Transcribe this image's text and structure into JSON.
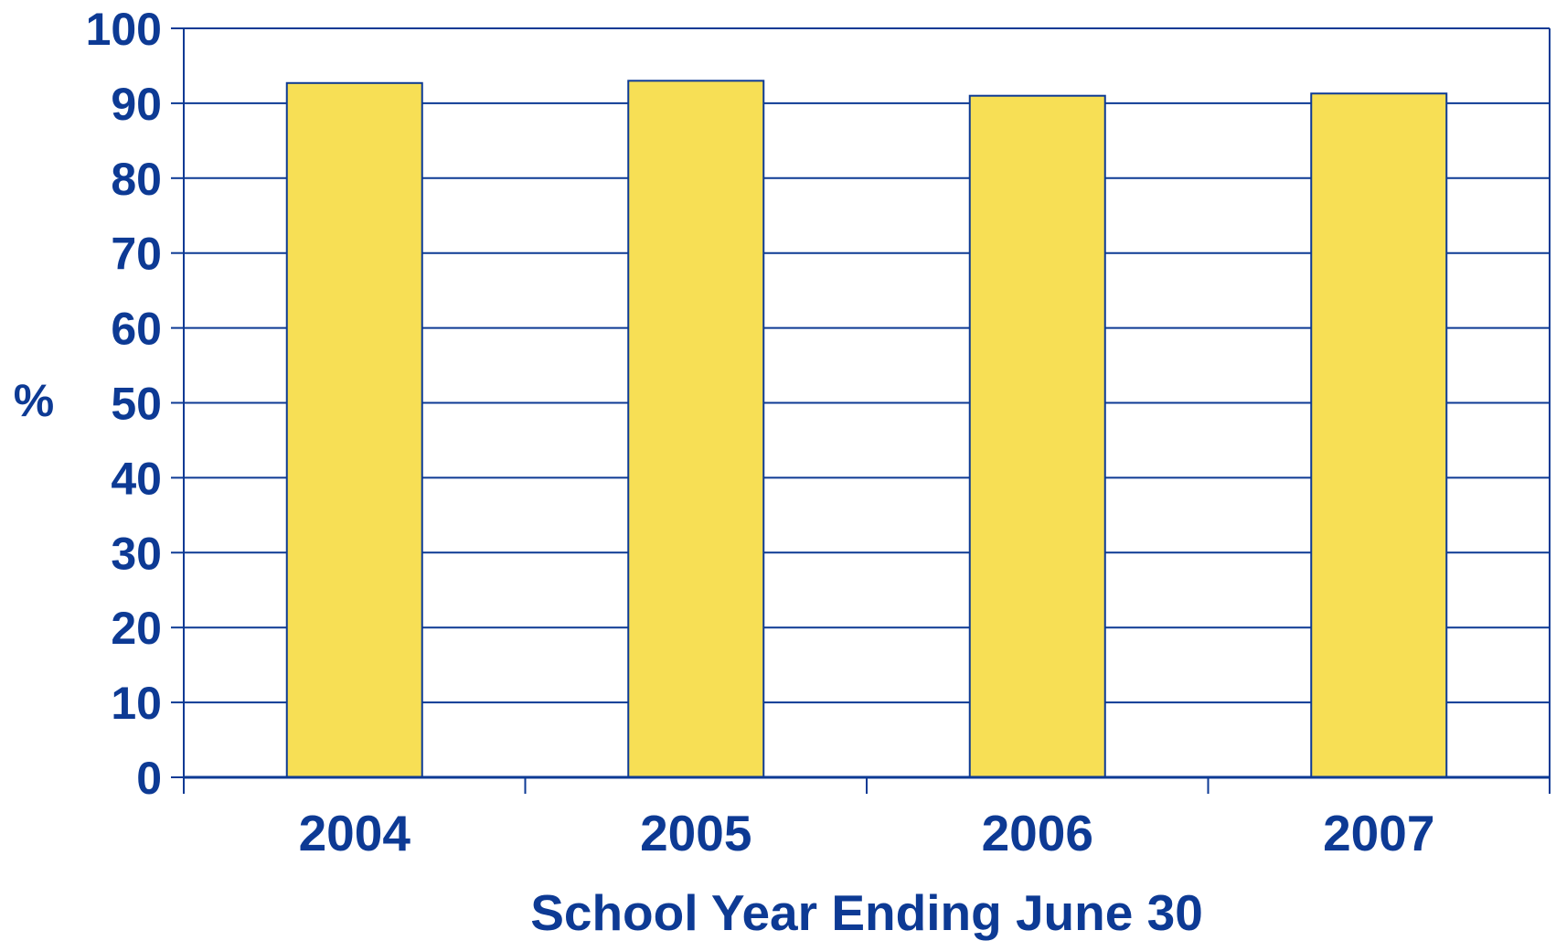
{
  "colors": {
    "axis": "#0d3a94",
    "bar_fill": "#f7df55",
    "bar_stroke": "#0d3a94",
    "text": "#0d3a94",
    "background": "#ffffff"
  },
  "chart_data": {
    "type": "bar",
    "title": "",
    "xlabel": "School Year Ending June 30",
    "ylabel": "%",
    "categories": [
      "2004",
      "2005",
      "2006",
      "2007"
    ],
    "series": [
      {
        "values": [
          92.7,
          93.0,
          91.0,
          91.3
        ]
      }
    ],
    "ylim": [
      0,
      100
    ],
    "yticks": [
      0,
      10,
      20,
      30,
      40,
      50,
      60,
      70,
      80,
      90,
      100
    ],
    "ytick_labels": [
      "0",
      "10",
      "20",
      "30",
      "40",
      "50",
      "60",
      "70",
      "80",
      "90",
      "100"
    ],
    "grid": true,
    "legend": "none"
  }
}
